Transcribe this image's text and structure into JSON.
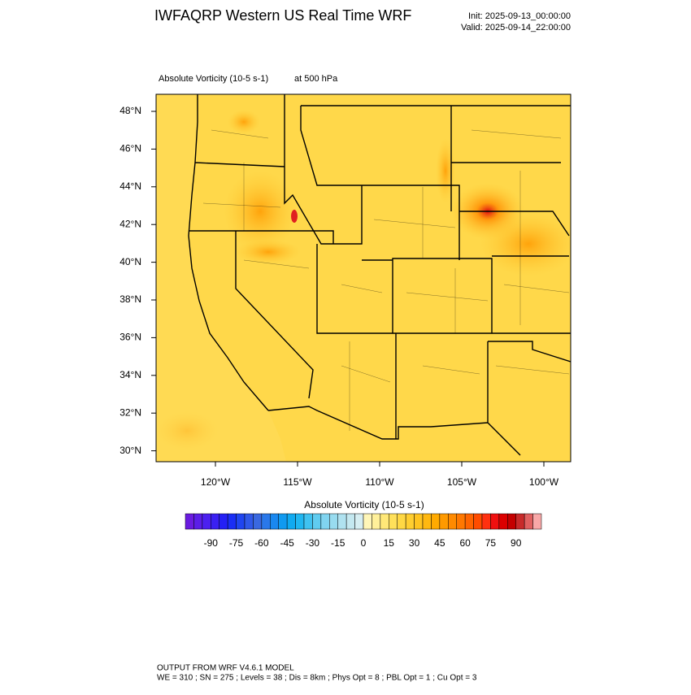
{
  "header": {
    "title": "IWFAQRP Western US Real Time WRF",
    "init": "Init: 2025-09-13_00:00:00",
    "valid": "Valid: 2025-09-14_22:00:00"
  },
  "map": {
    "field_label": "Absolute Vorticity   (10-5 s-1)",
    "level": "at   500 hPa",
    "lat_labels": [
      "48°N",
      "46°N",
      "44°N",
      "42°N",
      "40°N",
      "38°N",
      "36°N",
      "34°N",
      "32°N",
      "30°N"
    ],
    "lon_labels": [
      "120°W",
      "115°W",
      "110°W",
      "105°W",
      "100°W"
    ]
  },
  "colorbar": {
    "title": "Absolute Vorticity  (10-5 s-1)",
    "colors": [
      "#6a1be0",
      "#5b1ee8",
      "#4c20f0",
      "#3a20f2",
      "#2420f5",
      "#1a2ef5",
      "#2045f0",
      "#3058e8",
      "#3a68e0",
      "#2a78ea",
      "#1a88f0",
      "#109af0",
      "#10aaf0",
      "#20b6f0",
      "#40c2f0",
      "#60ccf0",
      "#80d4f0",
      "#98dcf0",
      "#b0e2f0",
      "#c4e8f0",
      "#d6eef2",
      "#fff6b8",
      "#fff09a",
      "#ffe878",
      "#ffe05a",
      "#ffd844",
      "#ffce30",
      "#ffc420",
      "#ffb810",
      "#ffaa00",
      "#ff9a00",
      "#ff8a00",
      "#ff7800",
      "#ff6400",
      "#ff4c00",
      "#ff3010",
      "#f01010",
      "#dc0000",
      "#c40000",
      "#c82a2a",
      "#e06060",
      "#f8a8a8"
    ],
    "tick_labels": [
      "-90",
      "-75",
      "-60",
      "-45",
      "-30",
      "-15",
      "0",
      "15",
      "30",
      "45",
      "60",
      "75",
      "90"
    ]
  },
  "footer": {
    "line1": "OUTPUT FROM WRF V4.6.1 MODEL",
    "line2": "WE = 310 ; SN = 275 ; Levels = 38 ; Dis = 8km ; Phys Opt = 8 ; PBL Opt = 1 ; Cu Opt = 3"
  }
}
